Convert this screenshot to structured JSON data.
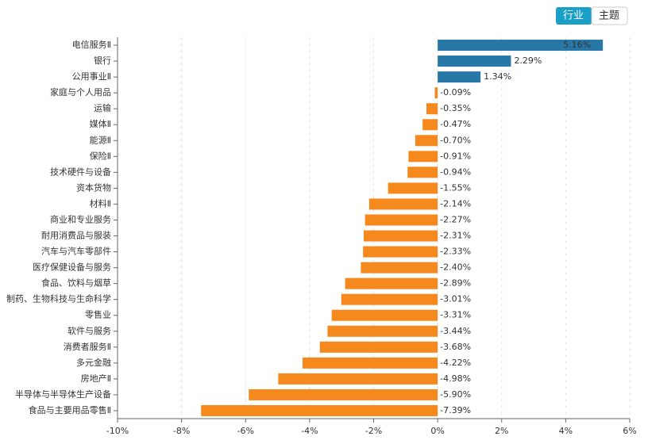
{
  "toggle": [
    "行业",
    "主题"
  ],
  "chart_data": {
    "type": "bar",
    "orientation": "horizontal",
    "categories": [
      "电信服务Ⅱ",
      "银行",
      "公用事业Ⅱ",
      "家庭与个人用品",
      "运输",
      "媒体Ⅱ",
      "能源Ⅱ",
      "保险Ⅱ",
      "技术硬件与设备",
      "资本货物",
      "材料Ⅱ",
      "商业和专业服务",
      "耐用消费品与服装",
      "汽车与汽车零部件",
      "医疗保健设备与服务",
      "食品、饮料与烟草",
      "制药、生物科技与生命科学",
      "零售业",
      "软件与服务",
      "消费者服务Ⅱ",
      "多元金融",
      "房地产Ⅱ",
      "半导体与半导体生产设备",
      "食品与主要用品零售Ⅱ"
    ],
    "values": [
      5.16,
      2.29,
      1.34,
      -0.09,
      -0.35,
      -0.47,
      -0.7,
      -0.91,
      -0.94,
      -1.55,
      -2.14,
      -2.27,
      -2.31,
      -2.33,
      -2.4,
      -2.89,
      -3.01,
      -3.31,
      -3.44,
      -3.68,
      -4.22,
      -4.98,
      -5.9,
      -7.39
    ],
    "value_labels": [
      "5.16%",
      "2.29%",
      "1.34%",
      "-0.09%",
      "-0.35%",
      "-0.47%",
      "-0.70%",
      "-0.91%",
      "-0.94%",
      "-1.55%",
      "-2.14%",
      "-2.27%",
      "-2.31%",
      "-2.33%",
      "-2.40%",
      "-2.89%",
      "-3.01%",
      "-3.31%",
      "-3.44%",
      "-3.68%",
      "-4.22%",
      "-4.98%",
      "-5.90%",
      "-7.39%"
    ],
    "positive_color": "#2878a7",
    "negative_color": "#f5891d",
    "xlim": [
      -10,
      6
    ],
    "xticks": [
      {
        "value": -10,
        "label": "-10%"
      },
      {
        "value": -8,
        "label": "-8%"
      },
      {
        "value": -6,
        "label": "-6%"
      },
      {
        "value": -4,
        "label": "-4%"
      },
      {
        "value": -2,
        "label": "-2%"
      },
      {
        "value": 0,
        "label": "0%"
      },
      {
        "value": 2,
        "label": "2%"
      },
      {
        "value": 4,
        "label": "4%"
      },
      {
        "value": 6,
        "label": "6%"
      }
    ],
    "grid": true
  }
}
